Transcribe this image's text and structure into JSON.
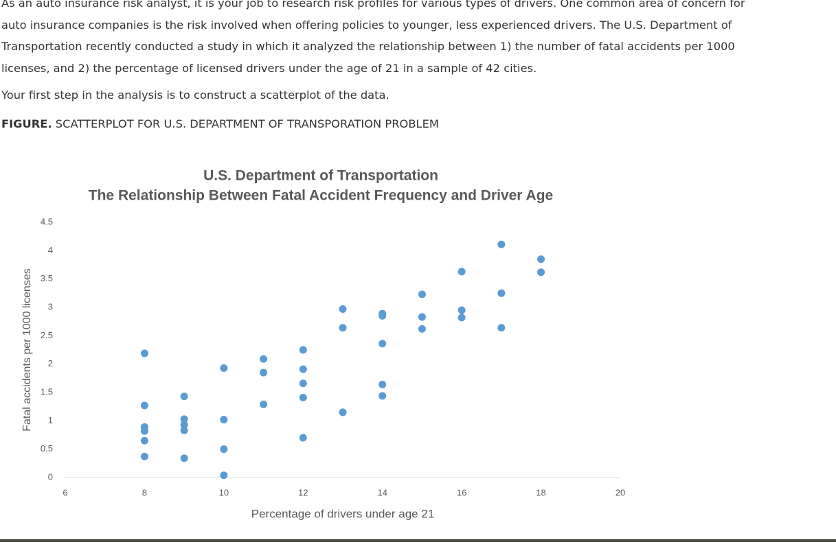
{
  "intro": {
    "lines": [
      "As an auto insurance risk analyst, it is your job to research risk profiles for various types of drivers. One common area of concern for",
      "auto insurance companies is the risk involved when offering policies to younger, less experienced drivers. The U.S. Department of",
      "Transportation recently conducted a study in which it analyzed the relationship between 1) the number of fatal accidents per 1000",
      "licenses, and 2) the percentage of licensed drivers under the age of 21 in a sample of 42 cities."
    ],
    "step": "Your first step in the analysis is to construct a scatterplot of the data."
  },
  "figure": {
    "label": "FIGURE.",
    "caption": "SCATTERPLOT FOR U.S. DEPARTMENT OF TRANSPORATION PROBLEM"
  },
  "chart_data": {
    "type": "scatter",
    "title": "U.S. Department of Transportation",
    "subtitle": "The Relationship Between Fatal Accident Frequency and Driver Age",
    "x_label": "Percentage of drivers under age 21",
    "y_label": "Fatal accidents per 1000 licenses",
    "color": "#5b9bd5",
    "xlim": [
      6,
      20
    ],
    "xticks": [
      6,
      8,
      10,
      12,
      14,
      16,
      18,
      20
    ],
    "ylim": [
      0,
      4.5
    ],
    "yticks": [
      0,
      0.5,
      1,
      1.5,
      2,
      2.5,
      3,
      3.5,
      4,
      4.5
    ],
    "x": [
      8,
      8,
      8,
      8,
      8,
      8,
      9,
      9,
      9,
      9,
      9,
      10,
      10,
      10,
      10,
      11,
      11,
      11,
      12,
      12,
      12,
      12,
      12,
      13,
      13,
      13,
      14,
      14,
      14,
      14,
      14,
      15,
      15,
      15,
      16,
      16,
      16,
      17,
      17,
      17,
      18,
      18
    ],
    "values": [
      2.19,
      1.27,
      0.89,
      0.82,
      0.65,
      0.37,
      1.43,
      1.03,
      0.93,
      0.83,
      0.34,
      1.93,
      1.02,
      0.5,
      0.04,
      2.09,
      1.85,
      1.29,
      2.25,
      1.91,
      1.66,
      1.41,
      0.7,
      2.97,
      2.64,
      1.15,
      2.89,
      2.85,
      2.36,
      1.64,
      1.44,
      3.23,
      2.83,
      2.62,
      3.63,
      2.95,
      2.82,
      4.11,
      3.25,
      2.64,
      3.85,
      3.62
    ]
  }
}
